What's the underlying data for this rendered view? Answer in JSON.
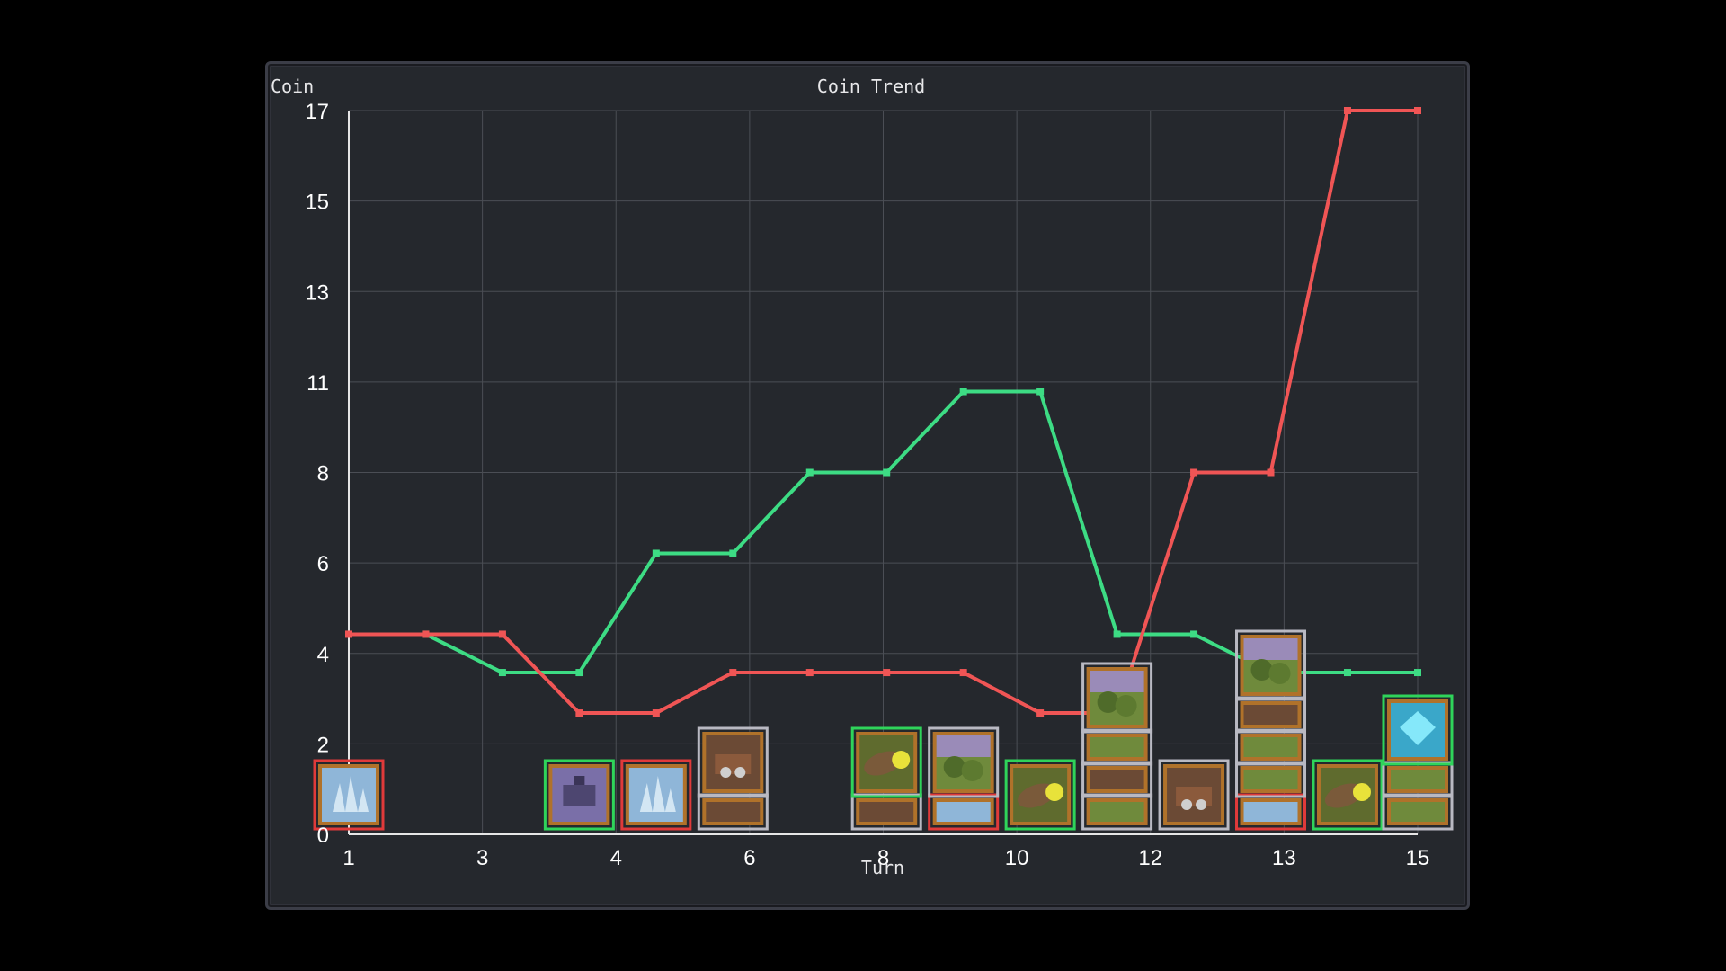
{
  "window": {
    "colors": {
      "background": "#000000",
      "panel": "#25282d",
      "panel_border": "#3b3d47",
      "grid": "#4b4e55",
      "axis": "#e6e6e6"
    }
  },
  "chart_data": {
    "type": "line",
    "title": "Coin Trend",
    "ylabel": "Coin",
    "xlabel": "Turn",
    "grid": true,
    "x_slots": 15,
    "x_tick_labels": [
      {
        "slot": 1,
        "label": "1"
      },
      {
        "slot": 3,
        "label": "3"
      },
      {
        "slot": 5,
        "label": "4"
      },
      {
        "slot": 7,
        "label": "6"
      },
      {
        "slot": 9,
        "label": "8"
      },
      {
        "slot": 11,
        "label": "10"
      },
      {
        "slot": 13,
        "label": "12"
      },
      {
        "slot": 15,
        "label": "13"
      },
      {
        "slot": 17,
        "label": "15"
      }
    ],
    "y_tick_labels": [
      "0",
      "2",
      "4",
      "6",
      "8",
      "11",
      "13",
      "15",
      "17"
    ],
    "series": [
      {
        "color": "#3ddc84",
        "points": [
          [
            2.15,
            4.7
          ],
          [
            3.3,
            3.8
          ],
          [
            4.45,
            3.8
          ],
          [
            5.6,
            6.6
          ],
          [
            6.75,
            6.6
          ],
          [
            7.9,
            8.5
          ],
          [
            9.05,
            8.5
          ],
          [
            10.2,
            10.4
          ],
          [
            11.35,
            10.4
          ],
          [
            12.5,
            4.7
          ],
          [
            13.65,
            4.7
          ],
          [
            14.8,
            3.8
          ],
          [
            15.95,
            3.8
          ],
          [
            17,
            3.8
          ]
        ]
      },
      {
        "color": "#f05555",
        "points": [
          [
            1,
            4.7
          ],
          [
            2.15,
            4.7
          ],
          [
            3.3,
            4.7
          ],
          [
            4.45,
            2.85
          ],
          [
            5.6,
            2.85
          ],
          [
            6.75,
            3.8
          ],
          [
            7.9,
            3.8
          ],
          [
            9.05,
            3.8
          ],
          [
            10.2,
            3.8
          ],
          [
            11.35,
            2.85
          ],
          [
            12.5,
            2.85
          ],
          [
            13.65,
            8.5
          ],
          [
            14.8,
            8.5
          ],
          [
            15.95,
            17
          ],
          [
            17,
            17
          ]
        ]
      }
    ]
  },
  "cards": {
    "border_colors": {
      "red": "#e03a3a",
      "green": "#2fd45a",
      "gray": "#b9b9c2"
    },
    "icons": {
      "crystal-city-icon": "#8fb6d8",
      "airship-icon": "#7a6fa8",
      "ore-cart-icon": "#6b4a35",
      "forest-hill-icon": "#6f8a3c",
      "log-cannon-icon": "#5f6b2e",
      "gem-cube-icon": "#3aa7c9"
    },
    "stacks": [
      {
        "x": 1,
        "cards": [
          {
            "icon": "crystal-city-icon",
            "border": "red"
          }
        ]
      },
      {
        "x": 4.45,
        "cards": [
          {
            "icon": "airship-icon",
            "border": "green"
          }
        ]
      },
      {
        "x": 5.6,
        "cards": [
          {
            "icon": "crystal-city-icon",
            "border": "red"
          }
        ]
      },
      {
        "x": 6.75,
        "cards": [
          {
            "icon": "ore-cart-icon",
            "border": "gray"
          },
          {
            "icon": "ore-cart-icon",
            "border": "gray"
          }
        ]
      },
      {
        "x": 9.05,
        "cards": [
          {
            "icon": "ore-cart-icon",
            "border": "gray"
          },
          {
            "icon": "log-cannon-icon",
            "border": "green"
          }
        ]
      },
      {
        "x": 10.2,
        "cards": [
          {
            "icon": "crystal-city-icon",
            "border": "red"
          },
          {
            "icon": "forest-hill-icon",
            "border": "gray"
          }
        ]
      },
      {
        "x": 11.35,
        "cards": [
          {
            "icon": "log-cannon-icon",
            "border": "green"
          }
        ]
      },
      {
        "x": 12.5,
        "cards": [
          {
            "icon": "forest-hill-icon",
            "border": "gray"
          },
          {
            "icon": "ore-cart-icon",
            "border": "gray"
          },
          {
            "icon": "forest-hill-icon",
            "border": "gray"
          },
          {
            "icon": "forest-hill-icon",
            "border": "gray"
          }
        ]
      },
      {
        "x": 13.65,
        "cards": [
          {
            "icon": "ore-cart-icon",
            "border": "gray"
          }
        ]
      },
      {
        "x": 14.8,
        "cards": [
          {
            "icon": "crystal-city-icon",
            "border": "red"
          },
          {
            "icon": "forest-hill-icon",
            "border": "gray"
          },
          {
            "icon": "forest-hill-icon",
            "border": "gray"
          },
          {
            "icon": "ore-cart-icon",
            "border": "gray"
          },
          {
            "icon": "forest-hill-icon",
            "border": "gray"
          }
        ]
      },
      {
        "x": 15.95,
        "cards": [
          {
            "icon": "log-cannon-icon",
            "border": "green"
          }
        ]
      },
      {
        "x": 17,
        "cards": [
          {
            "icon": "forest-hill-icon",
            "border": "gray"
          },
          {
            "icon": "forest-hill-icon",
            "border": "gray"
          },
          {
            "icon": "gem-cube-icon",
            "border": "green"
          }
        ]
      }
    ]
  }
}
